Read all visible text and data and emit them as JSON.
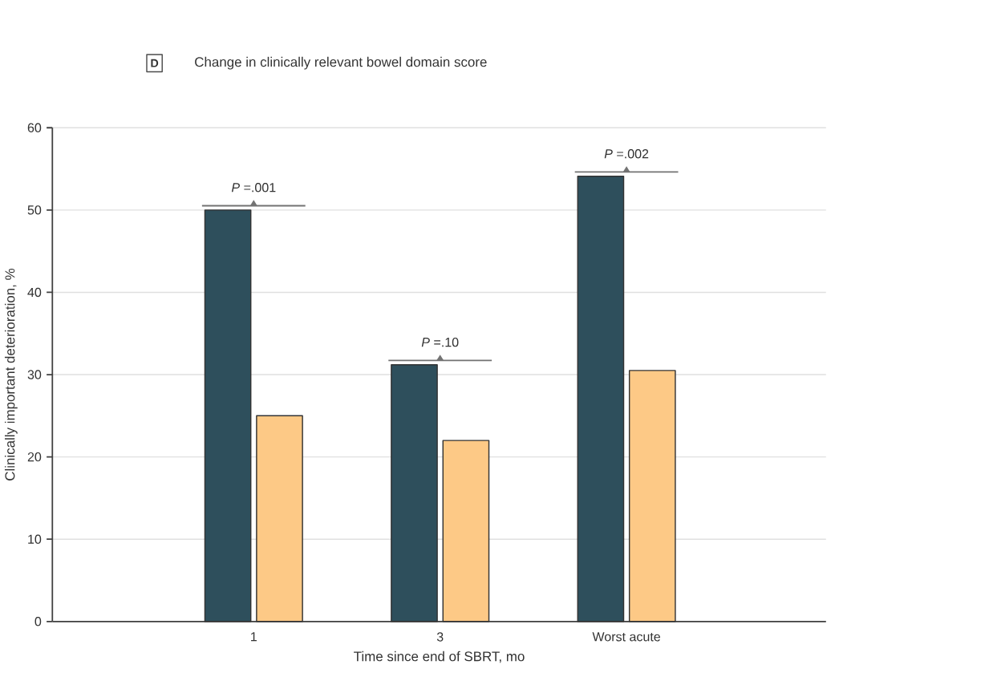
{
  "chart_data": {
    "type": "bar",
    "title": "Change in clinically relevant bowel domain score",
    "xlabel": "Time since end of SBRT, mo",
    "ylabel": "Clinically important deterioration, %",
    "categories": [
      "1",
      "3",
      "Worst acute"
    ],
    "series": [
      {
        "color": "#2e4f5c",
        "values": [
          50,
          31.2,
          54.1
        ]
      },
      {
        "color": "#fdc986",
        "values": [
          25,
          22,
          30.5
        ]
      }
    ],
    "ylim": [
      0,
      60
    ],
    "yticks": [
      0,
      10,
      20,
      30,
      40,
      50,
      60
    ],
    "grid": "y",
    "annotations": [
      "D",
      "*P* =.001",
      "*P* =.10",
      "*P* =.002"
    ]
  }
}
